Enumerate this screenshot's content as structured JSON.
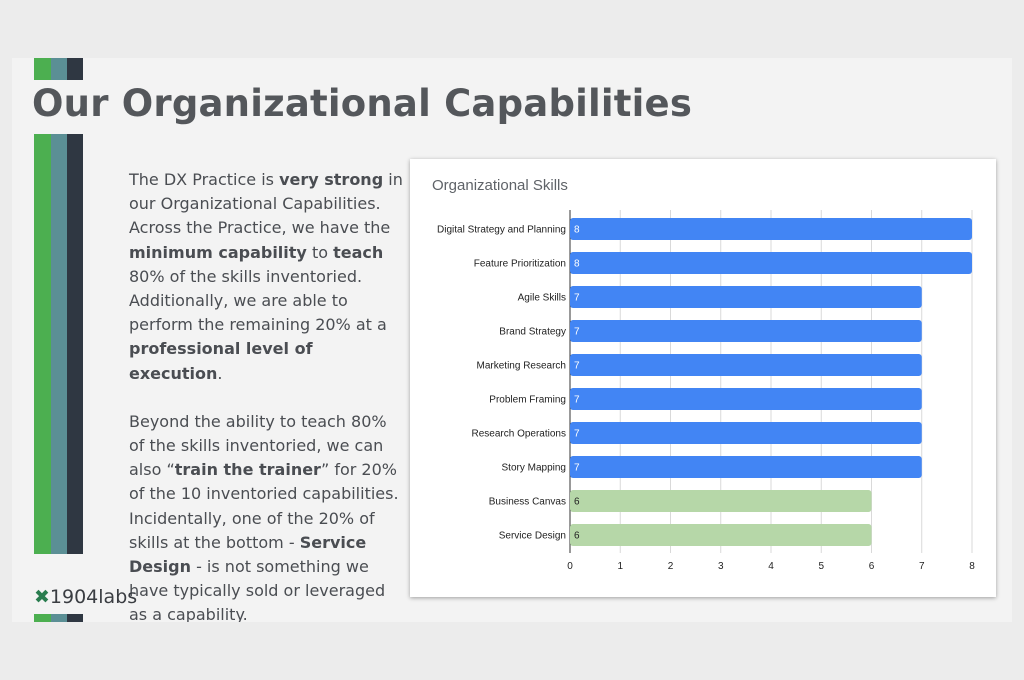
{
  "slide": {
    "title": "Our Organizational Capabilities",
    "colors": {
      "stripe_green": "#4caf50",
      "stripe_teal": "#5b8f95",
      "stripe_dark": "#2f3742",
      "title": "#54575b"
    }
  },
  "body": {
    "para1": [
      {
        "text": "The DX Practice is ",
        "bold": false
      },
      {
        "text": "very strong",
        "bold": true
      },
      {
        "text": " in our Organizational Capabilities. Across the Practice, we have the ",
        "bold": false
      },
      {
        "text": "minimum capability",
        "bold": true
      },
      {
        "text": " to ",
        "bold": false
      },
      {
        "text": "teach",
        "bold": true
      },
      {
        "text": " 80% of the skills inventoried. Additionally, we are able to perform the remaining 20% at a ",
        "bold": false
      },
      {
        "text": "professional level of execution",
        "bold": true
      },
      {
        "text": ".",
        "bold": false
      }
    ],
    "para2": [
      {
        "text": "Beyond the ability to teach 80% of the skills inventoried, we can also “",
        "bold": false
      },
      {
        "text": "train the trainer",
        "bold": true
      },
      {
        "text": "” for 20% of the 10 inventoried capabilities. Incidentally, one of the 20% of skills at the bottom - ",
        "bold": false
      },
      {
        "text": "Service Design",
        "bold": true
      },
      {
        "text": " - is not something we have typically sold or leveraged as a capability.",
        "bold": false
      }
    ]
  },
  "logo": {
    "mark": "✖",
    "text": "1904labs"
  },
  "chart_data": {
    "type": "bar",
    "orientation": "horizontal",
    "title": "Organizational Skills",
    "categories": [
      "Digital Strategy and Planning",
      "Feature Prioritization",
      "Agile Skills",
      "Brand Strategy",
      "Marketing Research",
      "Problem Framing",
      "Research Operations",
      "Story Mapping",
      "Business Canvas",
      "Service Design"
    ],
    "values": [
      8,
      8,
      7,
      7,
      7,
      7,
      7,
      7,
      6,
      6
    ],
    "bar_colors": [
      "#4285f4",
      "#4285f4",
      "#4285f4",
      "#4285f4",
      "#4285f4",
      "#4285f4",
      "#4285f4",
      "#4285f4",
      "#b6d7a8",
      "#b6d7a8"
    ],
    "data_labels": true,
    "xlim": [
      0,
      8
    ],
    "xticks": [
      0,
      1,
      2,
      3,
      4,
      5,
      6,
      7,
      8
    ],
    "grid": "vertical",
    "xlabel": "",
    "ylabel": ""
  }
}
